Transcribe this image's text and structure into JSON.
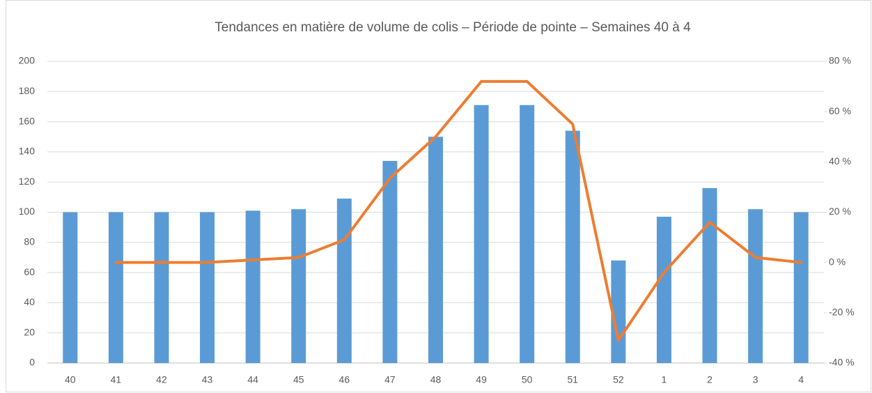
{
  "chart_data": {
    "type": "bar-line",
    "title": "Tendances en matière de volume de colis – Période de pointe – Semaines 40 à 4",
    "categories": [
      "40",
      "41",
      "42",
      "43",
      "44",
      "45",
      "46",
      "47",
      "48",
      "49",
      "50",
      "51",
      "52",
      "1",
      "2",
      "3",
      "4"
    ],
    "series": [
      {
        "type": "bar",
        "color": "#5b9bd5",
        "values": [
          100,
          100,
          100,
          100,
          101,
          102,
          109,
          134,
          150,
          171,
          171,
          154,
          68,
          97,
          116,
          102,
          100
        ]
      },
      {
        "type": "line",
        "axis": "y2",
        "color": "#ed7d31",
        "values": [
          null,
          0,
          0,
          0,
          1,
          2,
          9,
          33.5,
          50,
          72,
          72,
          55,
          -31,
          -4,
          16,
          2,
          0
        ]
      }
    ],
    "ylim": [
      0,
      200
    ],
    "yticks": [
      0,
      20,
      40,
      60,
      80,
      100,
      120,
      140,
      160,
      180,
      200
    ],
    "y2lim": [
      -40,
      80
    ],
    "y2ticks": [
      {
        "value": -40,
        "label": "-40 %"
      },
      {
        "value": -20,
        "label": "-20 %"
      },
      {
        "value": 0,
        "label": "0 %"
      },
      {
        "value": 20,
        "label": "20 %"
      },
      {
        "value": 40,
        "label": "40 %"
      },
      {
        "value": 60,
        "label": "60 %"
      },
      {
        "value": 80,
        "label": "80 %"
      }
    ],
    "grid": true
  }
}
